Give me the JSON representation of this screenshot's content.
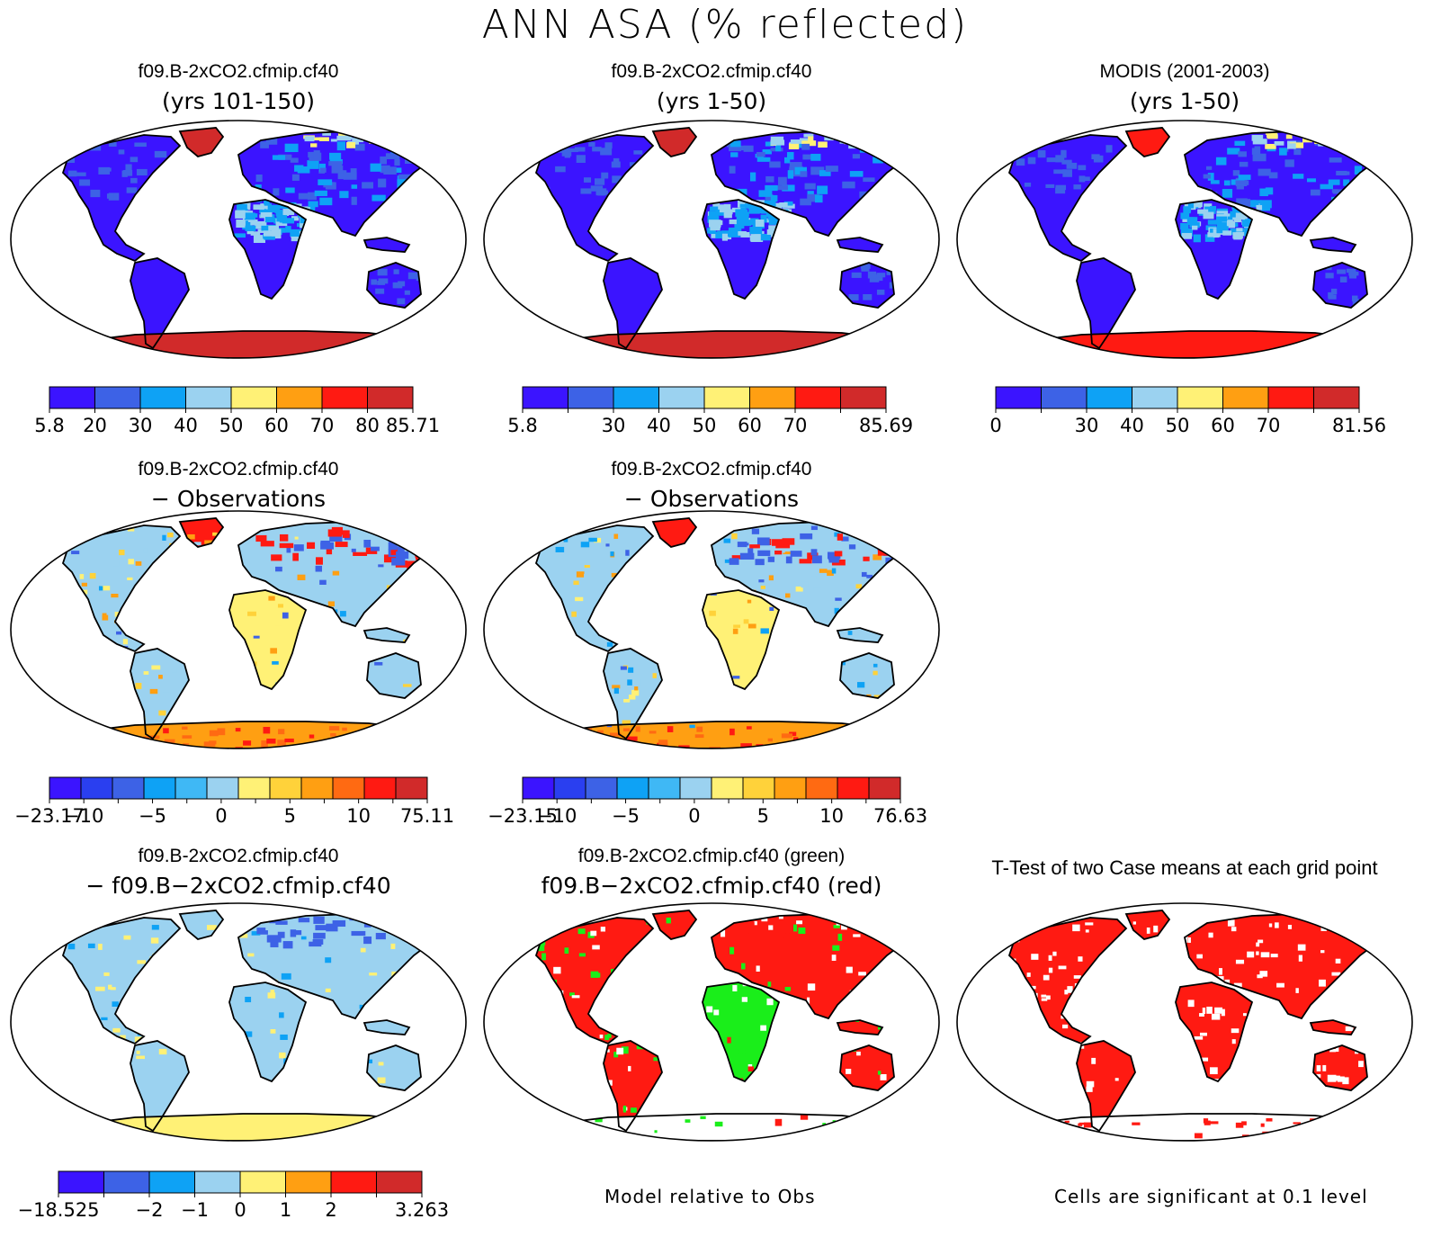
{
  "figure_title": "ANN ASA (% reflected)",
  "colors": {
    "purple": "#3b14ff",
    "blue": "#3d62e6",
    "mid_blue": "#0ea2f5",
    "light_blue": "#9bd2f0",
    "yellow": "#fff176",
    "orange": "#ff9f12",
    "red": "#ff1a12",
    "dark_red": "#d12a2a",
    "green": "#1aee1a",
    "ocean": "#ffffff"
  },
  "chart_data": [
    {
      "id": "p1",
      "type": "heatmap",
      "title": "f09.B-2xCO2.cfmip.cf40",
      "subtitle": "(yrs 101-150)",
      "map_style": "model",
      "colorbar": {
        "ticks": [
          "5.8",
          "20",
          "30",
          "40",
          "50",
          "60",
          "70",
          "80",
          "85.71"
        ],
        "colors": [
          "purple",
          "blue",
          "mid_blue",
          "light_blue",
          "yellow",
          "orange",
          "red",
          "dark_red"
        ]
      }
    },
    {
      "id": "p2",
      "type": "heatmap",
      "title": "f09.B-2xCO2.cfmip.cf40",
      "subtitle": "(yrs 1-50)",
      "map_style": "model",
      "colorbar": {
        "ticks": [
          "5.8",
          "",
          "30",
          "40",
          "50",
          "60",
          "70",
          "",
          "85.69"
        ],
        "colors": [
          "purple",
          "blue",
          "mid_blue",
          "light_blue",
          "yellow",
          "orange",
          "red",
          "dark_red"
        ]
      }
    },
    {
      "id": "p3",
      "type": "heatmap",
      "title": "MODIS (2001-2003)",
      "subtitle": "(yrs 1-50)",
      "map_style": "obs",
      "colorbar": {
        "ticks": [
          "0",
          "",
          "30",
          "40",
          "50",
          "60",
          "70",
          "",
          "81.56"
        ],
        "colors": [
          "purple",
          "blue",
          "mid_blue",
          "light_blue",
          "yellow",
          "orange",
          "red",
          "dark_red"
        ]
      }
    },
    {
      "id": "p4",
      "type": "heatmap",
      "title": "f09.B-2xCO2.cfmip.cf40",
      "subtitle": "− Observations",
      "map_style": "diff",
      "colorbar": {
        "ticks": [
          "−23.17",
          "−10",
          "",
          "−5",
          "",
          "0",
          "",
          "5",
          "",
          "10",
          "",
          "75.11"
        ],
        "colors": [
          "purple",
          "#2a3ff0",
          "blue",
          "mid_blue",
          "#3fb8f5",
          "light_blue",
          "yellow",
          "#ffd23a",
          "orange",
          "#ff6a12",
          "red",
          "dark_red"
        ]
      }
    },
    {
      "id": "p5",
      "type": "heatmap",
      "title": "f09.B-2xCO2.cfmip.cf40",
      "subtitle": "− Observations",
      "map_style": "diff",
      "colorbar": {
        "ticks": [
          "−23.15",
          "−10",
          "",
          "−5",
          "",
          "0",
          "",
          "5",
          "",
          "10",
          "",
          "76.63"
        ],
        "colors": [
          "purple",
          "#2a3ff0",
          "blue",
          "mid_blue",
          "#3fb8f5",
          "light_blue",
          "yellow",
          "#ffd23a",
          "orange",
          "#ff6a12",
          "red",
          "dark_red"
        ]
      }
    },
    {
      "id": "p6",
      "type": "heatmap",
      "title": "f09.B-2xCO2.cfmip.cf40",
      "subtitle": "− f09.B−2xCO2.cfmip.cf40",
      "map_style": "casediff",
      "colorbar": {
        "ticks": [
          "−18.525",
          "",
          "−2",
          "−1",
          "0",
          "1",
          "2",
          "",
          "3.263"
        ],
        "colors": [
          "purple",
          "blue",
          "mid_blue",
          "light_blue",
          "yellow",
          "orange",
          "red",
          "dark_red"
        ]
      }
    },
    {
      "id": "p7",
      "type": "heatmap",
      "title": "f09.B-2xCO2.cfmip.cf40 (green)",
      "subtitle": "f09.B−2xCO2.cfmip.cf40 (red)",
      "map_style": "relative",
      "note": "Model relative to Obs"
    },
    {
      "id": "p8",
      "type": "heatmap",
      "title": "T-Test of two Case means at each grid point",
      "subtitle": "",
      "map_style": "ttest",
      "note": "Cells are significant at 0.1 level"
    }
  ]
}
